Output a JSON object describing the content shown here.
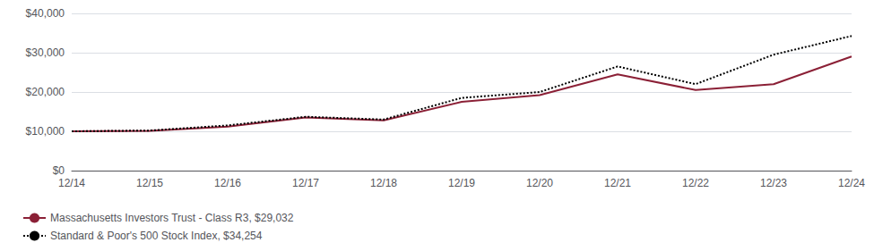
{
  "chart_data": {
    "type": "line",
    "categories": [
      "12/14",
      "12/15",
      "12/16",
      "12/17",
      "12/18",
      "12/19",
      "12/20",
      "12/21",
      "12/22",
      "12/23",
      "12/24"
    ],
    "series": [
      {
        "name": "Massachusetts Investors Trust - Class R3, $29,032",
        "color": "#8B2036",
        "line_style": "solid",
        "values": [
          10000,
          10100,
          11200,
          13500,
          12800,
          17500,
          19200,
          24500,
          20500,
          22000,
          29032
        ]
      },
      {
        "name": "Standard & Poor's 500 Stock Index, $34,254",
        "color": "#000000",
        "line_style": "dotted",
        "values": [
          10000,
          10200,
          11500,
          13700,
          13000,
          18500,
          20000,
          26500,
          22000,
          29500,
          34254
        ]
      }
    ],
    "ylim": [
      0,
      40000
    ],
    "yticks": [
      {
        "value": 0,
        "label": "$0"
      },
      {
        "value": 10000,
        "label": "$10,000"
      },
      {
        "value": 20000,
        "label": "$20,000"
      },
      {
        "value": 30000,
        "label": "$30,000"
      },
      {
        "value": 40000,
        "label": "$40,000"
      }
    ],
    "grid": true,
    "legend": "lower left"
  }
}
